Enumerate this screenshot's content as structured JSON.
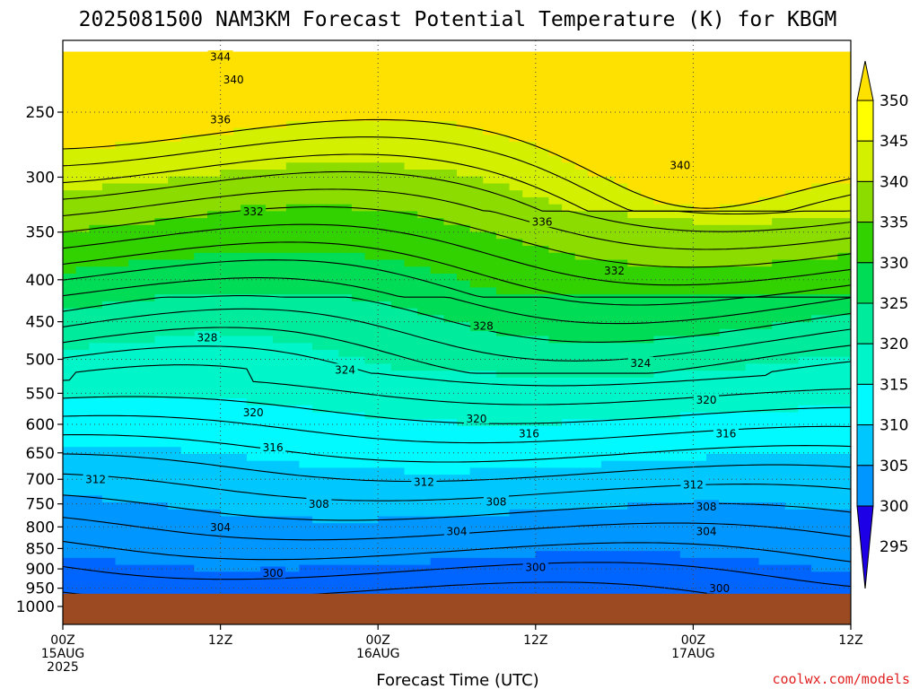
{
  "chart_data": {
    "type": "heatmap",
    "title": "2025081500 NAM3KM Forecast Potential Temperature (K) for KBGM",
    "xlabel": "Forecast Time (UTC)",
    "ylabel": "",
    "credit": "coolwx.com/models",
    "ylim": [
      1000,
      200
    ],
    "y_ticks": [
      250,
      300,
      350,
      400,
      450,
      500,
      550,
      600,
      650,
      700,
      750,
      800,
      850,
      900,
      950,
      1000
    ],
    "x_hours": [
      0,
      12,
      24,
      36,
      48,
      60
    ],
    "x_ticks": [
      {
        "hour": 0,
        "lines": [
          "00Z",
          "15AUG",
          "2025"
        ]
      },
      {
        "hour": 12,
        "lines": [
          "12Z"
        ]
      },
      {
        "hour": 24,
        "lines": [
          "00Z",
          "16AUG"
        ]
      },
      {
        "hour": 36,
        "lines": [
          "12Z"
        ]
      },
      {
        "hour": 48,
        "lines": [
          "00Z",
          "17AUG"
        ]
      },
      {
        "hour": 60,
        "lines": [
          "12Z"
        ]
      }
    ],
    "grid": true,
    "ground_pressure": 965,
    "ground_color": "#9c4a22",
    "colorbar": {
      "levels": [
        295,
        300,
        305,
        310,
        315,
        320,
        325,
        330,
        335,
        340,
        345,
        350
      ],
      "labels": [
        "350",
        "345",
        "340",
        "335",
        "330",
        "325",
        "320",
        "315",
        "310",
        "305",
        "300",
        "295"
      ],
      "colors": [
        "#1e00e6",
        "#0032ff",
        "#0064ff",
        "#0096ff",
        "#00c8ff",
        "#00faff",
        "#00f5c8",
        "#00eb9b",
        "#00dc55",
        "#32d200",
        "#8cdc00",
        "#d2f000",
        "#ffff00",
        "#ffe100"
      ],
      "placement": "right"
    },
    "contour_labels": [
      {
        "text": "344",
        "hour": 12.0,
        "p": 214
      },
      {
        "text": "340",
        "hour": 13.0,
        "p": 228
      },
      {
        "text": "336",
        "hour": 12.0,
        "p": 255
      },
      {
        "text": "332",
        "hour": 14.5,
        "p": 330
      },
      {
        "text": "328",
        "hour": 11.0,
        "p": 470
      },
      {
        "text": "324",
        "hour": 21.5,
        "p": 515
      },
      {
        "text": "320",
        "hour": 14.5,
        "p": 580
      },
      {
        "text": "316",
        "hour": 16.0,
        "p": 640
      },
      {
        "text": "312",
        "hour": 2.5,
        "p": 700
      },
      {
        "text": "308",
        "hour": 19.5,
        "p": 750
      },
      {
        "text": "304",
        "hour": 12.0,
        "p": 800
      },
      {
        "text": "300",
        "hour": 16.0,
        "p": 910
      },
      {
        "text": "328",
        "hour": 32.0,
        "p": 455
      },
      {
        "text": "320",
        "hour": 31.5,
        "p": 590
      },
      {
        "text": "316",
        "hour": 35.5,
        "p": 615
      },
      {
        "text": "312",
        "hour": 27.5,
        "p": 705
      },
      {
        "text": "308",
        "hour": 33.0,
        "p": 745
      },
      {
        "text": "304",
        "hour": 30.0,
        "p": 810
      },
      {
        "text": "300",
        "hour": 36.0,
        "p": 895
      },
      {
        "text": "336",
        "hour": 36.5,
        "p": 340
      },
      {
        "text": "332",
        "hour": 42.0,
        "p": 390
      },
      {
        "text": "324",
        "hour": 44.0,
        "p": 505
      },
      {
        "text": "340",
        "hour": 47.0,
        "p": 290
      },
      {
        "text": "320",
        "hour": 49.0,
        "p": 560
      },
      {
        "text": "316",
        "hour": 50.5,
        "p": 615
      },
      {
        "text": "312",
        "hour": 48.0,
        "p": 710
      },
      {
        "text": "308",
        "hour": 49.0,
        "p": 755
      },
      {
        "text": "304",
        "hour": 49.0,
        "p": 810
      },
      {
        "text": "300",
        "hour": 50.0,
        "p": 950
      }
    ]
  }
}
